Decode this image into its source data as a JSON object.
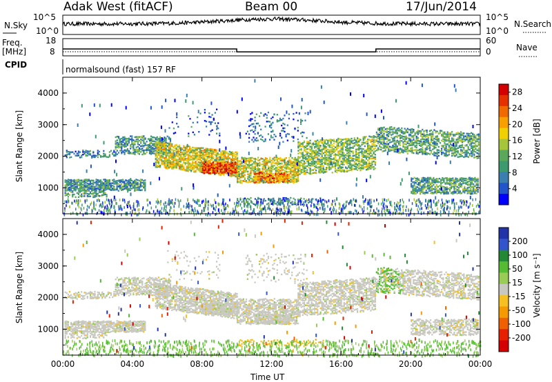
{
  "header": {
    "station": "Adak West (fitACF)",
    "beam": "Beam 00",
    "date": "17/Jun/2014"
  },
  "panels": {
    "nsky": {
      "label": "N.Sky",
      "ticks": [
        "10^5",
        "10^0"
      ],
      "right_label": "N.Search",
      "right_ticks": [
        "10^5",
        "10^0"
      ]
    },
    "freq": {
      "label_line1": "Freq.",
      "label_line2": "[MHz]",
      "ticks": [
        "18",
        "8"
      ],
      "right_label": "Nave",
      "right_ticks": [
        "60",
        "0"
      ]
    },
    "cpid": {
      "label": "CPID",
      "text": "normalsound (fast) 157 RF"
    }
  },
  "colors": {
    "power_scale": [
      "#0000ff",
      "#2255cc",
      "#3a7fb0",
      "#3d9a6e",
      "#5aa85a",
      "#a6c53a",
      "#f0d000",
      "#f7a000",
      "#f06a00",
      "#e63000",
      "#d40000"
    ],
    "velocity_scale": [
      "#2233aa",
      "#3355cc",
      "#228833",
      "#55bb33",
      "#99cc55",
      "#c8c8c0",
      "#f5c020",
      "#f59a00",
      "#f06000",
      "#e62000",
      "#d40000"
    ],
    "gray": "#c8c8c0"
  },
  "chart_data": [
    {
      "type": "heatmap",
      "name": "power",
      "xlabel": "",
      "ylabel": "Slant Range [km]",
      "x_ticks": [
        "00:00",
        "04:00",
        "08:00",
        "12:00",
        "16:00",
        "20:00",
        "00:00"
      ],
      "y_ticks": [
        "1000",
        "2000",
        "3000",
        "4000"
      ],
      "ylim": [
        180,
        4500
      ],
      "xlim_hours": [
        0,
        24
      ],
      "colorbar": {
        "label": "Power [dB]",
        "ticks": [
          "4",
          "8",
          "12",
          "16",
          "20",
          "24",
          "28"
        ],
        "range": [
          0,
          30
        ]
      }
    },
    {
      "type": "heatmap",
      "name": "velocity",
      "xlabel": "Time UT",
      "ylabel": "Slant Range [km]",
      "x_ticks": [
        "00:00",
        "04:00",
        "08:00",
        "12:00",
        "16:00",
        "20:00",
        "00:00"
      ],
      "y_ticks": [
        "1000",
        "2000",
        "3000",
        "4000"
      ],
      "ylim": [
        180,
        4500
      ],
      "xlim_hours": [
        0,
        24
      ],
      "colorbar": {
        "label": "Velocity [m s⁻¹]",
        "ticks": [
          "200",
          "100",
          "50",
          "15",
          "-15",
          "-50",
          "-100",
          "-200"
        ]
      }
    }
  ],
  "timeseries": {
    "freq_mhz": [
      [
        0,
        12.0
      ],
      [
        10,
        12.0
      ],
      [
        10,
        10.3
      ],
      [
        18,
        10.3
      ],
      [
        18,
        12.0
      ],
      [
        24,
        12.0
      ]
    ],
    "nave": [
      [
        0,
        8
      ],
      [
        24,
        8
      ]
    ]
  }
}
